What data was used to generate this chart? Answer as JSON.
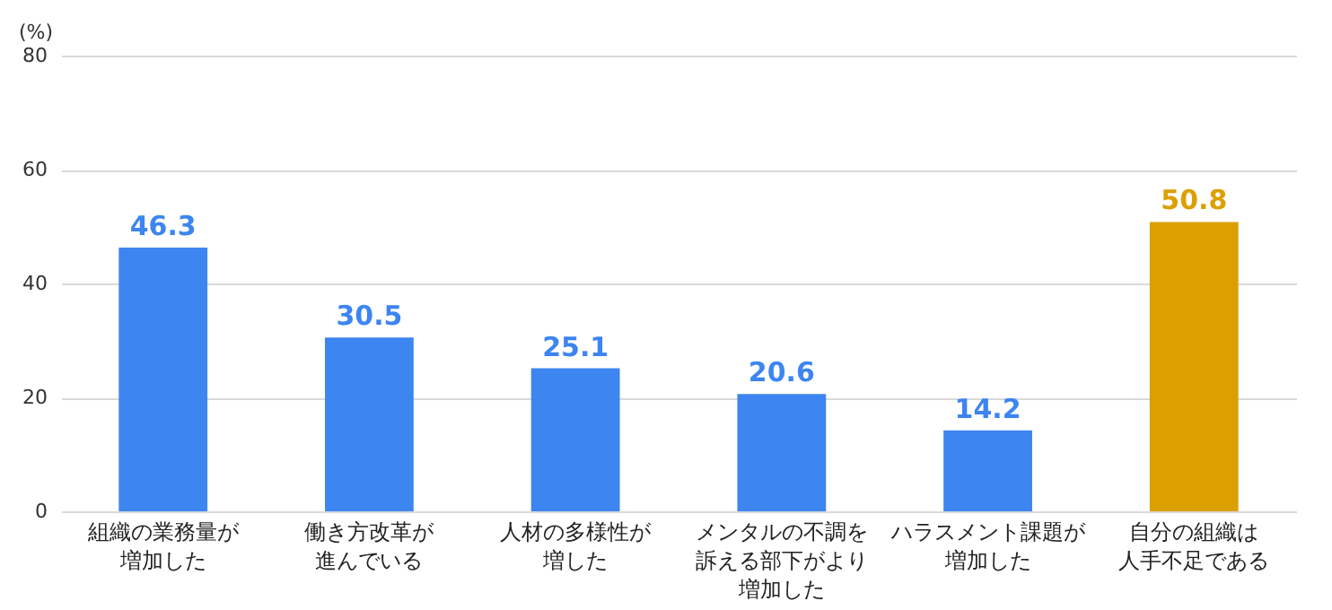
{
  "chart_data": {
    "type": "bar",
    "ylabel": "(%)",
    "categories": [
      "組織の業務量が増加した",
      "働き方改革が進んでいる",
      "人材の多様性が増した",
      "メンタルの不調を訴える部下がより増加した",
      "ハラスメント課題が増加した",
      "自分の組織は人手不足である"
    ],
    "values": [
      46.3,
      30.5,
      25.1,
      20.6,
      14.2,
      50.8
    ],
    "colors": [
      "#3d85f0",
      "#3d85f0",
      "#3d85f0",
      "#3d85f0",
      "#3d85f0",
      "#dc9f00"
    ],
    "ylim": [
      0,
      80
    ],
    "yticks": [
      0,
      20,
      40,
      60,
      80
    ],
    "grid": "y",
    "data_labels": true
  }
}
